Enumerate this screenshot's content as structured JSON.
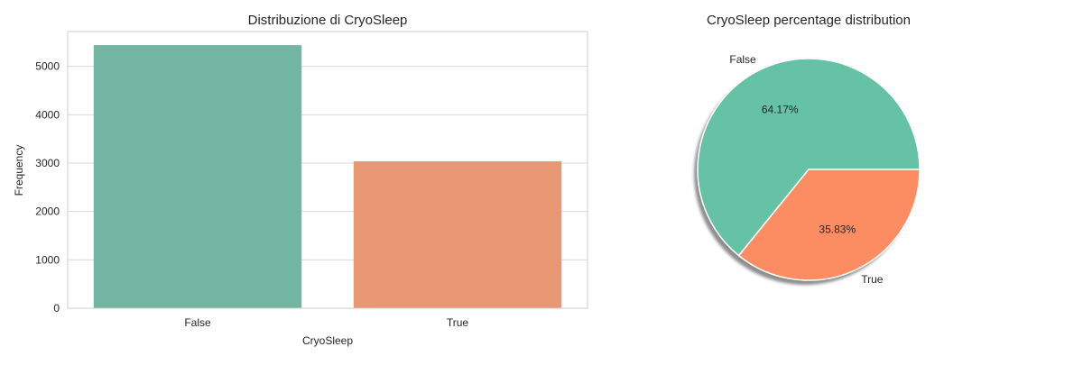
{
  "chart_data": [
    {
      "type": "bar",
      "title": "Distribuzione di CryoSleep",
      "xlabel": "CryoSleep",
      "ylabel": "Frequency",
      "categories": [
        "False",
        "True"
      ],
      "values": [
        5439,
        3037
      ],
      "ylim": [
        0,
        5720
      ],
      "yticks": [
        0,
        1000,
        2000,
        3000,
        4000,
        5000
      ],
      "colors": [
        "#72b6a1",
        "#e99675"
      ],
      "grid": true
    },
    {
      "type": "pie",
      "title": "CryoSleep percentage distribution",
      "labels": [
        "False",
        "True"
      ],
      "values": [
        64.17,
        35.83
      ],
      "value_labels": [
        "64.17%",
        "35.83%"
      ],
      "colors": [
        "#66c2a5",
        "#fc8d62"
      ],
      "shadow": true
    }
  ]
}
